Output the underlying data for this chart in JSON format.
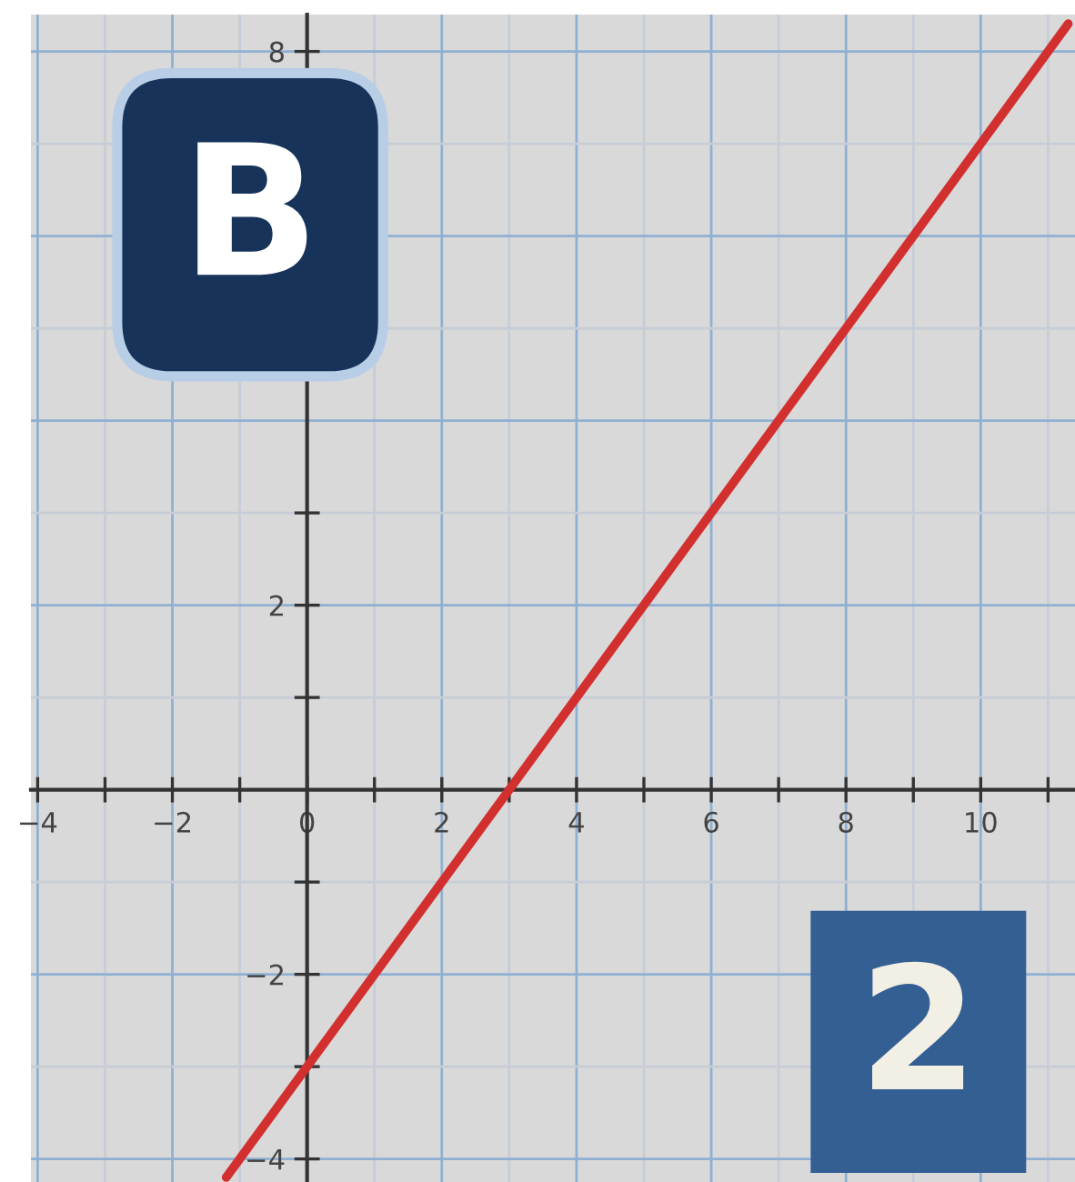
{
  "chart_data": {
    "type": "line",
    "series": [
      {
        "color": "#d2302f",
        "x": [
          -1.2,
          11.3
        ],
        "values": [
          -4.2,
          8.3
        ]
      }
    ],
    "xlim": [
      -4.1,
      11.4
    ],
    "ylim": [
      -4.25,
      8.4
    ],
    "xticks": [
      -4,
      {
        "value": -3,
        "label": null
      },
      -2,
      {
        "value": -1,
        "label": null
      },
      0,
      {
        "value": 1,
        "label": null
      },
      2,
      {
        "value": 3,
        "label": null
      },
      4,
      {
        "value": 5,
        "label": null
      },
      6,
      {
        "value": 7,
        "label": null
      },
      8,
      {
        "value": 9,
        "label": null
      },
      10,
      {
        "value": 11,
        "label": null
      }
    ],
    "yticks": [
      -4,
      {
        "value": -3,
        "label": null
      },
      -2,
      {
        "value": -1,
        "label": null
      },
      {
        "value": 1,
        "label": null
      },
      2,
      {
        "value": 3,
        "label": null
      },
      8
    ],
    "grid": true,
    "marker": "none",
    "line_style": "solid",
    "annotations": [
      "B",
      "2"
    ]
  }
}
